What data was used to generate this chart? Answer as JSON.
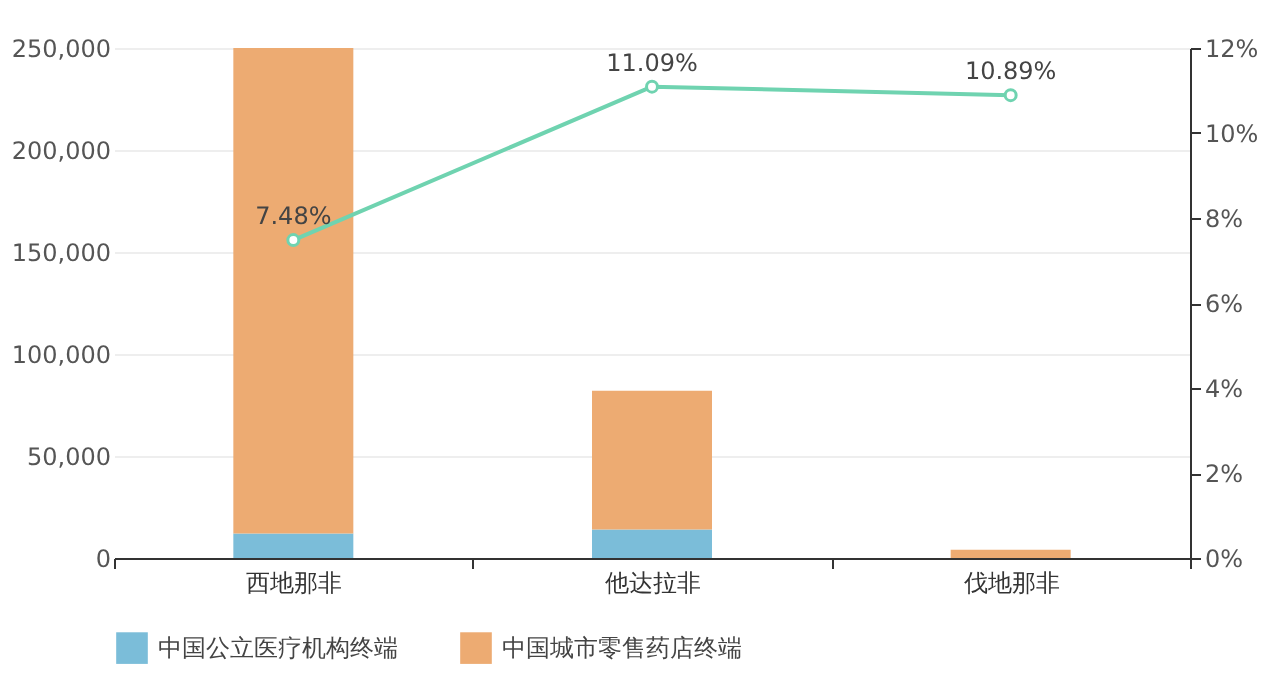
{
  "chart_data": {
    "type": "bar",
    "stacked": true,
    "categories": [
      "西地那非",
      "他达拉非",
      "伐地那非"
    ],
    "series": [
      {
        "name": "中国公立医疗机构终端",
        "color": "#7bbdd9",
        "values": [
          12000,
          14000,
          0
        ]
      },
      {
        "name": "中国城市零售药店终端",
        "color": "#edab72",
        "values": [
          238000,
          68000,
          4000
        ]
      },
      {
        "type": "line",
        "axis": "y2",
        "color": "#6fd3b0",
        "values": [
          7.48,
          11.09,
          10.89
        ],
        "value_labels": [
          "7.48%",
          "11.09%",
          "10.89%"
        ]
      }
    ],
    "ylim": [
      0,
      250000
    ],
    "yticks": [
      {
        "value": 0,
        "label": "0"
      },
      {
        "value": 50000,
        "label": "50,000"
      },
      {
        "value": 100000,
        "label": "100,000"
      },
      {
        "value": 150000,
        "label": "150,000"
      },
      {
        "value": 200000,
        "label": "200,000"
      },
      {
        "value": 250000,
        "label": "250,000"
      }
    ],
    "y2lim": [
      0,
      12
    ],
    "y2ticks": [
      {
        "value": 0,
        "label": "0%"
      },
      {
        "value": 2,
        "label": "2%"
      },
      {
        "value": 4,
        "label": "4%"
      },
      {
        "value": 6,
        "label": "6%"
      },
      {
        "value": 8,
        "label": "8%"
      },
      {
        "value": 10,
        "label": "10%"
      },
      {
        "value": 12,
        "label": "12%"
      }
    ],
    "grid": "y",
    "legend": "bottom",
    "marker": "circle"
  }
}
